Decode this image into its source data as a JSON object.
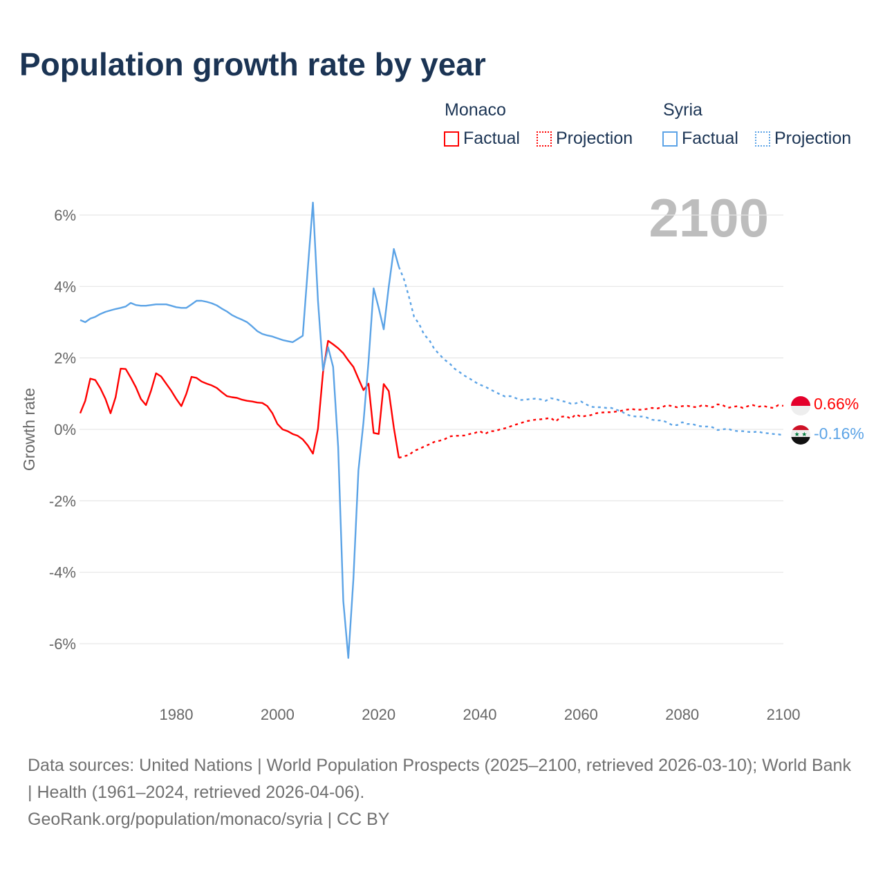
{
  "title": "Population growth rate by year",
  "legend": {
    "groups": [
      {
        "name": "Monaco",
        "color": "#ff0000",
        "factual": "Factual",
        "projection": "Projection"
      },
      {
        "name": "Syria",
        "color": "#5ba3e6",
        "factual": "Factual",
        "projection": "Projection"
      }
    ]
  },
  "current_year": "2100",
  "end_labels": {
    "monaco": "0.66%",
    "syria": "-0.16%"
  },
  "footer": {
    "sources": "Data sources: United Nations | World Population Prospects (2025–2100, retrieved 2026-03-10); World Bank | Health (1961–2024, retrieved 2026-04-06).",
    "credit": "GeoRank.org/population/monaco/syria | CC BY"
  },
  "chart_data": {
    "type": "line",
    "title": "Population growth rate by year",
    "xlabel": "",
    "ylabel": "Growth rate",
    "xlim": [
      1961,
      2100
    ],
    "ylim": [
      -7,
      7
    ],
    "xticks": [
      "1980",
      "2000",
      "2020",
      "2040",
      "2060",
      "2080",
      "2100"
    ],
    "yticks": [
      "6%",
      "4%",
      "2%",
      "0%",
      "-2%",
      "-4%",
      "-6%"
    ],
    "grid": true,
    "series": [
      {
        "name": "Monaco Factual",
        "color": "#ff0000",
        "dashed": false,
        "start_year": 1961,
        "values": [
          0.45,
          0.8,
          1.42,
          1.38,
          1.15,
          0.85,
          0.45,
          0.9,
          1.7,
          1.69,
          1.45,
          1.18,
          0.85,
          0.68,
          1.08,
          1.57,
          1.48,
          1.28,
          1.08,
          0.85,
          0.65,
          1.0,
          1.47,
          1.44,
          1.34,
          1.28,
          1.23,
          1.16,
          1.04,
          0.93,
          0.9,
          0.88,
          0.83,
          0.8,
          0.78,
          0.75,
          0.74,
          0.65,
          0.45,
          0.15,
          0.0,
          -0.05,
          -0.13,
          -0.18,
          -0.28,
          -0.45,
          -0.68,
          0.02,
          1.6,
          2.48,
          2.38,
          2.27,
          2.13,
          1.93,
          1.75,
          1.42,
          1.1,
          1.28,
          -0.1,
          -0.13,
          1.27,
          1.07,
          0.05,
          -0.8
        ]
      },
      {
        "name": "Monaco Projection",
        "color": "#ff0000",
        "dashed": true,
        "start_year": 2024,
        "values": [
          -0.8,
          -0.75,
          -0.72,
          -0.6,
          -0.55,
          -0.48,
          -0.42,
          -0.35,
          -0.32,
          -0.28,
          -0.2,
          -0.18,
          -0.18,
          -0.17,
          -0.13,
          -0.1,
          -0.05,
          -0.13,
          -0.05,
          -0.05,
          0,
          0.03,
          0.08,
          0.13,
          0.17,
          0.22,
          0.25,
          0.27,
          0.28,
          0.3,
          0.32,
          0.22,
          0.35,
          0.37,
          0.3,
          0.42,
          0.35,
          0.38,
          0.4,
          0.45,
          0.47,
          0.48,
          0.48,
          0.5,
          0.52,
          0.55,
          0.57,
          0.55,
          0.55,
          0.57,
          0.6,
          0.58,
          0.62,
          0.68,
          0.65,
          0.62,
          0.65,
          0.66,
          0.63,
          0.62,
          0.68,
          0.65,
          0.62,
          0.7,
          0.68,
          0.6,
          0.63,
          0.65,
          0.6,
          0.65,
          0.68,
          0.63,
          0.66,
          0.62,
          0.6,
          0.68,
          0.66
        ]
      },
      {
        "name": "Syria Factual",
        "color": "#5ba3e6",
        "dashed": false,
        "start_year": 1961,
        "values": [
          3.06,
          3.0,
          3.1,
          3.15,
          3.23,
          3.29,
          3.33,
          3.37,
          3.4,
          3.44,
          3.54,
          3.48,
          3.46,
          3.46,
          3.48,
          3.5,
          3.5,
          3.5,
          3.46,
          3.42,
          3.4,
          3.4,
          3.5,
          3.6,
          3.6,
          3.57,
          3.53,
          3.47,
          3.38,
          3.3,
          3.2,
          3.13,
          3.07,
          3.0,
          2.88,
          2.75,
          2.67,
          2.63,
          2.6,
          2.55,
          2.5,
          2.47,
          2.44,
          2.53,
          2.62,
          4.5,
          6.35,
          3.6,
          1.65,
          2.3,
          1.75,
          -0.5,
          -4.8,
          -6.4,
          -4.2,
          -1.15,
          0.2,
          1.9,
          3.95,
          3.4,
          2.8,
          4.0,
          5.05,
          4.55
        ]
      },
      {
        "name": "Syria Projection",
        "color": "#5ba3e6",
        "dashed": true,
        "start_year": 2024,
        "values": [
          4.55,
          4.2,
          3.7,
          3.15,
          2.95,
          2.65,
          2.5,
          2.25,
          2.1,
          1.95,
          1.85,
          1.7,
          1.6,
          1.5,
          1.42,
          1.33,
          1.25,
          1.2,
          1.12,
          1.05,
          0.98,
          0.92,
          0.93,
          0.88,
          0.82,
          0.83,
          0.85,
          0.86,
          0.84,
          0.8,
          0.87,
          0.85,
          0.8,
          0.77,
          0.72,
          0.73,
          0.78,
          0.7,
          0.63,
          0.62,
          0.62,
          0.6,
          0.6,
          0.55,
          0.5,
          0.42,
          0.37,
          0.36,
          0.36,
          0.33,
          0.27,
          0.25,
          0.25,
          0.2,
          0.12,
          0.12,
          0.2,
          0.15,
          0.15,
          0.1,
          0.08,
          0.08,
          0.06,
          -0.02,
          0,
          0.02,
          -0.03,
          -0.05,
          -0.05,
          -0.07,
          -0.08,
          -0.06,
          -0.1,
          -0.11,
          -0.13,
          -0.14,
          -0.16
        ]
      }
    ]
  }
}
